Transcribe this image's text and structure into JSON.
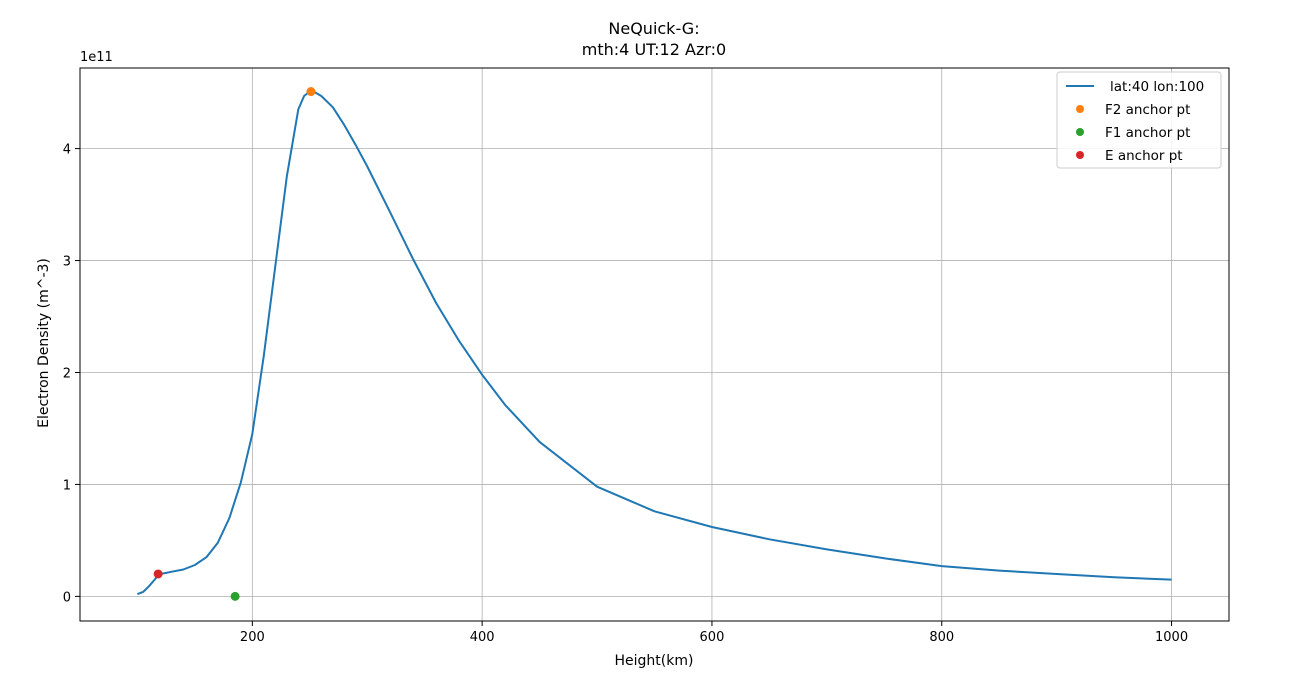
{
  "chart_data": {
    "type": "line",
    "title": "NeQuick-G:",
    "subtitle": "mth:4 UT:12 Azr:0",
    "xlabel": "Height(km)",
    "ylabel": "Electron Density (m^-3)",
    "y_offset_label": "1e11",
    "xlim": [
      50,
      1050
    ],
    "ylim": [
      -0.22,
      4.72
    ],
    "y_scale_factor": 100000000000,
    "x_ticks": [
      200,
      400,
      600,
      800,
      1000
    ],
    "x_tick_labels": [
      "200",
      "400",
      "600",
      "800",
      "1000"
    ],
    "y_ticks": [
      0,
      1,
      2,
      3,
      4
    ],
    "y_tick_labels": [
      "0",
      "1",
      "2",
      "3",
      "4"
    ],
    "grid": true,
    "legend_position": "top-right",
    "series": [
      {
        "name": "lat:40 lon:100",
        "kind": "line",
        "color": "#1f77b4",
        "x": [
          100,
          105,
          110,
          115,
          118,
          120,
          125,
          130,
          140,
          150,
          160,
          170,
          180,
          190,
          200,
          210,
          220,
          230,
          240,
          245,
          250,
          255,
          260,
          270,
          280,
          290,
          300,
          320,
          340,
          360,
          380,
          400,
          420,
          450,
          500,
          550,
          600,
          650,
          700,
          750,
          800,
          850,
          900,
          950,
          1000
        ],
        "y": [
          0.02,
          0.04,
          0.09,
          0.15,
          0.19,
          0.2,
          0.21,
          0.22,
          0.24,
          0.28,
          0.35,
          0.48,
          0.7,
          1.02,
          1.45,
          2.15,
          2.95,
          3.75,
          4.35,
          4.47,
          4.51,
          4.5,
          4.47,
          4.37,
          4.21,
          4.03,
          3.84,
          3.43,
          3.01,
          2.62,
          2.28,
          1.98,
          1.71,
          1.38,
          0.98,
          0.76,
          0.62,
          0.51,
          0.42,
          0.34,
          0.27,
          0.23,
          0.2,
          0.17,
          0.15
        ]
      },
      {
        "name": "F2 anchor pt",
        "kind": "point",
        "color": "#ff7f0e",
        "x": [
          251
        ],
        "y": [
          4.51
        ]
      },
      {
        "name": "F1 anchor pt",
        "kind": "point",
        "color": "#2ca02c",
        "x": [
          185
        ],
        "y": [
          0
        ]
      },
      {
        "name": "E anchor pt",
        "kind": "point",
        "color": "#d62728",
        "x": [
          118
        ],
        "y": [
          0.2
        ]
      }
    ]
  }
}
